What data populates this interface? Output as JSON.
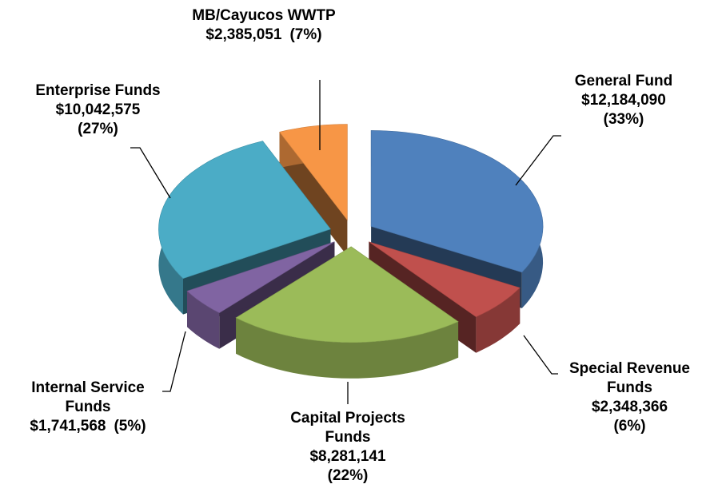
{
  "chart_data": {
    "type": "pie",
    "categories": [
      "General Fund",
      "Special Revenue Funds",
      "Capital Projects Funds",
      "Internal Service Funds",
      "Enterprise Funds",
      "MB/Cayucos WWTP"
    ],
    "values": [
      12184090,
      2348366,
      8281141,
      1741568,
      10042575,
      2385051
    ],
    "value_labels": [
      "$12,184,090",
      "$2,348,366",
      "$8,281,141",
      "$1,741,568",
      "$10,042,575",
      "$2,385,051"
    ],
    "percents": [
      33,
      6,
      22,
      5,
      27,
      7
    ],
    "percent_labels": [
      "(33%)",
      "(6%)",
      "(22%)",
      "(5%)",
      "(27%)",
      "(7%)"
    ],
    "colors": [
      "#4f81bd",
      "#c0504d",
      "#9bbb59",
      "#8064a2",
      "#4bacc6",
      "#f79646"
    ]
  }
}
